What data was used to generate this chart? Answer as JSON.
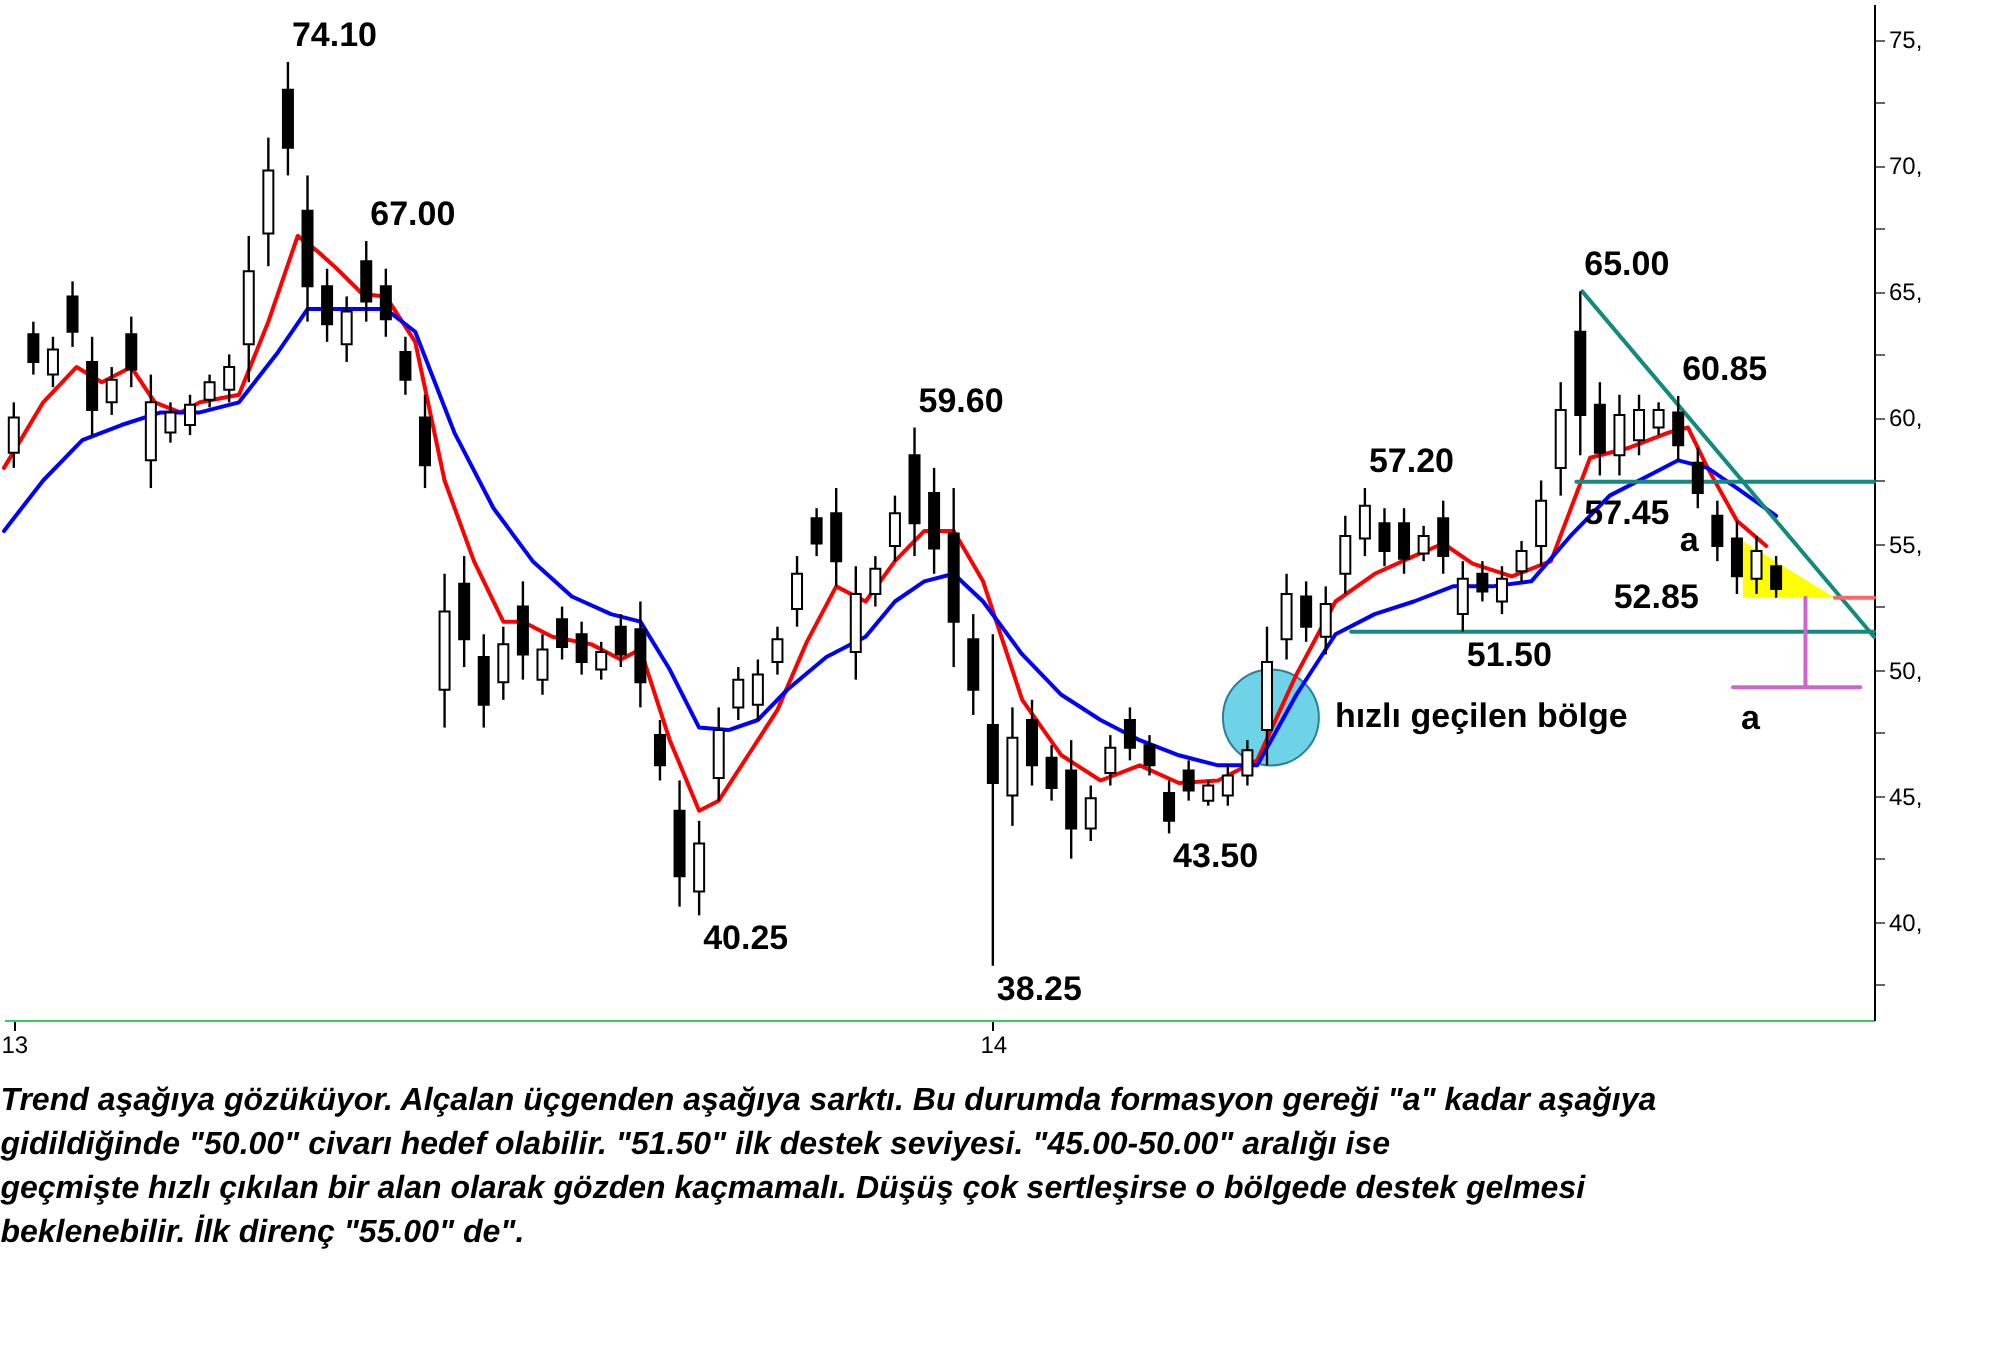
{
  "chart_data": {
    "type": "candlestick",
    "x": [
      13,
      13.02,
      13.04,
      13.06,
      13.08,
      13.1,
      13.12,
      13.14,
      13.16,
      13.18,
      13.2,
      13.22,
      13.24,
      13.26,
      13.28,
      13.3,
      13.32,
      13.34,
      13.36,
      13.38,
      13.4,
      13.42,
      13.44,
      13.46,
      13.48,
      13.5,
      13.52,
      13.54,
      13.56,
      13.58,
      13.6,
      13.62,
      13.64,
      13.66,
      13.68,
      13.7,
      13.72,
      13.74,
      13.76,
      13.78,
      13.8,
      13.82,
      13.84,
      13.86,
      13.88,
      13.9,
      13.92,
      13.94,
      13.96,
      13.98,
      14,
      14.02,
      14.04,
      14.06,
      14.08,
      14.1,
      14.12,
      14.14,
      14.16,
      14.18,
      14.2,
      14.22,
      14.24,
      14.26,
      14.28,
      14.3,
      14.32,
      14.34,
      14.36,
      14.38,
      14.4,
      14.42,
      14.44,
      14.46,
      14.48,
      14.5,
      14.52,
      14.54,
      14.56,
      14.58,
      14.6,
      14.62,
      14.64,
      14.66,
      14.68,
      14.7,
      14.72,
      14.74,
      14.76,
      14.78,
      14.8
    ],
    "ohlc": [
      [
        58.6,
        60.6,
        58.0,
        60.0
      ],
      [
        63.3,
        63.8,
        61.7,
        62.2
      ],
      [
        61.7,
        63.2,
        61.2,
        62.7
      ],
      [
        64.8,
        65.4,
        62.8,
        63.4
      ],
      [
        62.2,
        63.2,
        59.3,
        60.3
      ],
      [
        60.6,
        62.0,
        60.1,
        61.5
      ],
      [
        63.3,
        64.0,
        61.2,
        61.9
      ],
      [
        58.3,
        61.7,
        57.2,
        60.6
      ],
      [
        59.4,
        60.6,
        59.0,
        60.2
      ],
      [
        59.7,
        60.9,
        59.3,
        60.5
      ],
      [
        60.7,
        61.7,
        60.4,
        61.4
      ],
      [
        61.1,
        62.5,
        60.6,
        62.0
      ],
      [
        62.9,
        67.2,
        61.4,
        65.8
      ],
      [
        67.3,
        71.1,
        66.0,
        69.8
      ],
      [
        73.0,
        74.1,
        69.6,
        70.7
      ],
      [
        68.2,
        69.6,
        63.8,
        65.2
      ],
      [
        65.2,
        65.9,
        63.0,
        63.7
      ],
      [
        62.9,
        64.8,
        62.2,
        64.2
      ],
      [
        66.2,
        67.0,
        63.8,
        64.6
      ],
      [
        65.2,
        65.9,
        63.2,
        63.9
      ],
      [
        62.6,
        63.2,
        60.9,
        61.5
      ],
      [
        60.0,
        60.9,
        57.2,
        58.1
      ],
      [
        49.2,
        53.8,
        47.7,
        52.3
      ],
      [
        53.4,
        54.5,
        50.1,
        51.2
      ],
      [
        50.5,
        51.4,
        47.7,
        48.6
      ],
      [
        49.5,
        51.7,
        48.8,
        51.0
      ],
      [
        52.5,
        53.5,
        49.6,
        50.6
      ],
      [
        49.6,
        51.4,
        49.0,
        50.8
      ],
      [
        52.0,
        52.5,
        50.4,
        50.9
      ],
      [
        51.4,
        51.9,
        49.8,
        50.3
      ],
      [
        50.0,
        51.1,
        49.6,
        50.7
      ],
      [
        51.7,
        52.2,
        50.1,
        50.6
      ],
      [
        51.6,
        52.7,
        48.5,
        49.5
      ],
      [
        47.4,
        48.0,
        45.6,
        46.2
      ],
      [
        44.4,
        45.6,
        40.6,
        41.8
      ],
      [
        41.2,
        44.0,
        40.25,
        43.1
      ],
      [
        45.7,
        48.5,
        44.8,
        47.6
      ],
      [
        48.5,
        50.1,
        48.0,
        49.6
      ],
      [
        48.6,
        50.4,
        48.0,
        49.8
      ],
      [
        50.3,
        51.7,
        49.8,
        51.2
      ],
      [
        52.4,
        54.5,
        51.7,
        53.8
      ],
      [
        56.0,
        56.4,
        54.5,
        55.0
      ],
      [
        56.2,
        57.2,
        53.3,
        54.3
      ],
      [
        50.7,
        54.1,
        49.6,
        53.0
      ],
      [
        53.0,
        54.5,
        52.5,
        54.0
      ],
      [
        54.9,
        56.9,
        54.3,
        56.2
      ],
      [
        58.5,
        59.6,
        54.5,
        55.8
      ],
      [
        57.0,
        58.0,
        53.8,
        54.8
      ],
      [
        55.4,
        57.2,
        50.1,
        51.9
      ],
      [
        51.2,
        52.2,
        48.2,
        49.2
      ],
      [
        47.8,
        51.4,
        38.25,
        45.5
      ],
      [
        45.0,
        48.5,
        43.8,
        47.3
      ],
      [
        48.0,
        48.8,
        45.4,
        46.2
      ],
      [
        46.5,
        47.0,
        44.8,
        45.3
      ],
      [
        46.0,
        47.2,
        42.5,
        43.7
      ],
      [
        43.7,
        45.4,
        43.2,
        44.9
      ],
      [
        45.9,
        47.4,
        45.4,
        46.9
      ],
      [
        48.0,
        48.5,
        46.4,
        46.9
      ],
      [
        47.0,
        47.4,
        45.8,
        46.2
      ],
      [
        45.1,
        45.6,
        43.5,
        44.0
      ],
      [
        46.0,
        46.4,
        44.8,
        45.2
      ],
      [
        44.8,
        45.6,
        44.6,
        45.4
      ],
      [
        45.0,
        46.2,
        44.6,
        45.8
      ],
      [
        45.8,
        47.2,
        45.4,
        46.8
      ],
      [
        47.6,
        51.7,
        46.2,
        50.3
      ],
      [
        51.2,
        53.8,
        50.4,
        53.0
      ],
      [
        52.9,
        53.5,
        51.1,
        51.7
      ],
      [
        51.3,
        53.3,
        50.6,
        52.6
      ],
      [
        53.8,
        56.1,
        53.0,
        55.3
      ],
      [
        55.2,
        57.2,
        54.5,
        56.5
      ],
      [
        55.8,
        56.4,
        54.1,
        54.7
      ],
      [
        55.8,
        56.4,
        53.8,
        54.4
      ],
      [
        54.6,
        55.7,
        54.3,
        55.3
      ],
      [
        56.0,
        56.7,
        53.8,
        54.5
      ],
      [
        52.2,
        54.3,
        51.5,
        53.6
      ],
      [
        53.8,
        54.3,
        52.7,
        53.1
      ],
      [
        52.7,
        54.1,
        52.2,
        53.6
      ],
      [
        53.9,
        55.1,
        53.5,
        54.7
      ],
      [
        54.9,
        57.5,
        54.1,
        56.7
      ],
      [
        58.0,
        61.4,
        56.9,
        60.3
      ],
      [
        63.4,
        65.0,
        58.5,
        60.1
      ],
      [
        60.5,
        61.4,
        57.7,
        58.6
      ],
      [
        58.5,
        60.9,
        57.7,
        60.1
      ],
      [
        59.1,
        60.9,
        58.5,
        60.3
      ],
      [
        59.6,
        60.6,
        59.3,
        60.3
      ],
      [
        60.2,
        60.85,
        58.3,
        58.9
      ],
      [
        58.2,
        58.8,
        56.4,
        57.0
      ],
      [
        56.1,
        56.7,
        54.3,
        54.9
      ],
      [
        55.2,
        55.9,
        53.0,
        53.7
      ],
      [
        53.6,
        55.3,
        53.0,
        54.7
      ],
      [
        54.1,
        54.5,
        52.85,
        53.2
      ]
    ],
    "color": "#000000",
    "series": [
      {
        "type": "scatter",
        "marker": "circle",
        "color": "#6fd3e8",
        "x": [
          14.284
        ],
        "values": [
          48.1
        ]
      },
      {
        "type": "area",
        "color": "#ffff00",
        "x": [
          14.766,
          14.86
        ],
        "values": [
          55.1,
          52.85
        ]
      },
      {
        "type": "line",
        "color": "#ff0000",
        "x": [
          12.99,
          13.03,
          13.064,
          13.09,
          13.12,
          13.144,
          13.17,
          13.19,
          13.23,
          13.26,
          13.29,
          13.31,
          13.33,
          13.356,
          13.38,
          13.41,
          13.44,
          13.47,
          13.5,
          13.52,
          13.55,
          13.59,
          13.62,
          13.64,
          13.67,
          13.7,
          13.72,
          13.75,
          13.78,
          13.81,
          13.84,
          13.87,
          13.9,
          13.93,
          13.96,
          13.99,
          14.03,
          14.07,
          14.11,
          14.15,
          14.19,
          14.23,
          14.27,
          14.31,
          14.35,
          14.39,
          14.43,
          14.46,
          14.49,
          14.53,
          14.57,
          14.61,
          14.65,
          14.69,
          14.71,
          14.73,
          14.76,
          14.79
        ],
        "values": [
          58.0,
          60.6,
          62.0,
          61.4,
          62.0,
          60.6,
          60.2,
          60.6,
          60.9,
          63.8,
          67.2,
          66.6,
          65.9,
          64.9,
          64.8,
          63.0,
          57.5,
          54.3,
          51.9,
          51.9,
          51.3,
          51.0,
          50.4,
          50.8,
          47.2,
          44.4,
          44.8,
          46.6,
          48.4,
          51.1,
          53.3,
          52.7,
          54.3,
          55.5,
          55.5,
          53.5,
          48.8,
          46.6,
          45.6,
          46.2,
          45.5,
          45.6,
          46.4,
          49.8,
          52.7,
          53.8,
          54.5,
          55.0,
          54.2,
          53.7,
          54.3,
          58.4,
          58.8,
          59.4,
          59.6,
          58.0,
          55.9,
          54.9
        ]
      },
      {
        "type": "line",
        "color": "#0000ff",
        "x": [
          12.99,
          13.03,
          13.07,
          13.11,
          13.15,
          13.19,
          13.23,
          13.27,
          13.3,
          13.34,
          13.38,
          13.41,
          13.45,
          13.49,
          13.53,
          13.57,
          13.61,
          13.64,
          13.67,
          13.7,
          13.73,
          13.76,
          13.79,
          13.83,
          13.87,
          13.9,
          13.93,
          13.96,
          13.99,
          14.03,
          14.07,
          14.11,
          14.15,
          14.19,
          14.23,
          14.27,
          14.31,
          14.35,
          14.39,
          14.43,
          14.47,
          14.51,
          14.55,
          14.59,
          14.63,
          14.67,
          14.7,
          14.73,
          14.76,
          14.8
        ],
        "values": [
          55.5,
          57.5,
          59.1,
          59.7,
          60.2,
          60.2,
          60.6,
          62.6,
          64.3,
          64.3,
          64.3,
          63.4,
          59.4,
          56.4,
          54.3,
          52.9,
          52.2,
          51.9,
          50.0,
          47.7,
          47.6,
          48.0,
          49.2,
          50.5,
          51.3,
          52.7,
          53.5,
          53.8,
          52.7,
          50.6,
          49.0,
          48.0,
          47.2,
          46.6,
          46.2,
          46.2,
          49.0,
          51.4,
          52.2,
          52.7,
          53.3,
          53.3,
          53.5,
          55.3,
          56.9,
          57.7,
          58.3,
          58.0,
          57.2,
          56.1
        ]
      },
      {
        "type": "line",
        "color": "#138a7e",
        "x": [
          14.602,
          14.9
        ],
        "values": [
          65.0,
          51.3
        ]
      },
      {
        "type": "line",
        "color": "#138a7e",
        "x": [
          14.596,
          14.9
        ],
        "values": [
          57.45,
          57.45
        ]
      },
      {
        "type": "line",
        "color": "#138a7e",
        "x": [
          14.366,
          14.9
        ],
        "values": [
          51.5,
          51.5
        ]
      },
      {
        "type": "line",
        "color": "#ff6666",
        "x": [
          14.86,
          14.9
        ],
        "values": [
          52.85,
          52.85
        ]
      },
      {
        "type": "line",
        "color": "#cc66cc",
        "x": [
          14.83,
          14.83
        ],
        "values": [
          52.85,
          49.3
        ]
      },
      {
        "type": "line",
        "color": "#cc66cc",
        "x": [
          14.756,
          14.886
        ],
        "values": [
          49.3,
          49.3
        ]
      }
    ],
    "xlim": [
      12.99,
      14.9
    ],
    "xticks": [
      13,
      14
    ],
    "ylim": [
      36.1,
      76.4
    ],
    "yticks": [
      {
        "value": 37.5,
        "label": null
      },
      {
        "value": 40,
        "label": "40,"
      },
      {
        "value": 42.5,
        "label": null
      },
      {
        "value": 45,
        "label": "45,"
      },
      {
        "value": 47.5,
        "label": null
      },
      {
        "value": 50,
        "label": "50,"
      },
      {
        "value": 52.5,
        "label": null
      },
      {
        "value": 55,
        "label": "55,"
      },
      {
        "value": 57.5,
        "label": null
      },
      {
        "value": 60,
        "label": "60,"
      },
      {
        "value": 62.5,
        "label": null
      },
      {
        "value": 65,
        "label": "65,"
      },
      {
        "value": 67.5,
        "label": null
      },
      {
        "value": 70,
        "label": "70,"
      },
      {
        "value": 72.5,
        "label": null
      },
      {
        "value": 75,
        "label": "75,"
      }
    ],
    "grid": false,
    "annotations": [
      {
        "text": "74.10",
        "x": 13.28,
        "y": 74.1
      },
      {
        "text": "67.00",
        "x": 13.36,
        "y": 67.0
      },
      {
        "text": "40.25",
        "x": 13.7,
        "y": 40.25
      },
      {
        "text": "59.60",
        "x": 13.92,
        "y": 59.6
      },
      {
        "text": "38.25",
        "x": 14.0,
        "y": 38.25
      },
      {
        "text": "43.50",
        "x": 14.18,
        "y": 43.5
      },
      {
        "text": "57.20",
        "x": 14.38,
        "y": 57.2
      },
      {
        "text": "51.50",
        "x": 14.48,
        "y": 51.5
      },
      {
        "text": "65.00",
        "x": 14.6,
        "y": 65.0
      },
      {
        "text": "60.85",
        "x": 14.7,
        "y": 60.85
      },
      {
        "text": "57.45",
        "x": 14.596,
        "y": 57.45
      },
      {
        "text": "52.85",
        "x": 14.766,
        "y": 52.85
      },
      {
        "text": "a",
        "x": 14.766,
        "y": 55.1
      },
      {
        "text": "a",
        "x": 14.756,
        "y": 49.3
      },
      {
        "text": "hızlı geçilen bölge",
        "x": 14.284,
        "y": 48.1
      },
      "Trend aşağıya gözüküyor. Alçalan üçgenden aşağıya sarktı. Bu durumda formasyon gereği \"a\" kadar aşağıya gidildiğinde \"50.00\" civarı hedef olabilir. \"51.50\" ilk destek seviyesi. \"45.00-50.00\" aralığı ise geçmişte hızlı çıkılan bir alan olarak gözden kaçmamalı. Düşüş çok sertleşirse o bölgede destek gelmesi beklenebilir. İlk direnç \"55.00\" de\"."
    ]
  }
}
